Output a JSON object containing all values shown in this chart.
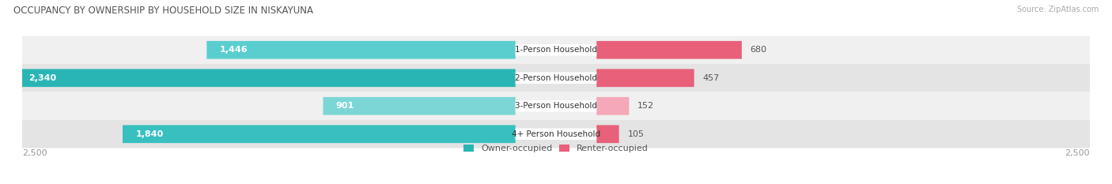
{
  "title": "OCCUPANCY BY OWNERSHIP BY HOUSEHOLD SIZE IN NISKAYUNA",
  "source": "Source: ZipAtlas.com",
  "categories": [
    "1-Person Household",
    "2-Person Household",
    "3-Person Household",
    "4+ Person Household"
  ],
  "owner_values": [
    1446,
    2340,
    901,
    1840
  ],
  "renter_values": [
    680,
    457,
    152,
    105
  ],
  "max_scale": 2500,
  "owner_color_dark": "#2ab5b5",
  "owner_color_light": "#7dd6d6",
  "renter_color_dark": "#e8607a",
  "renter_color_light": "#f4a8b8",
  "row_bg_colors": [
    "#f0f0f0",
    "#e4e4e4",
    "#f0f0f0",
    "#e4e4e4"
  ],
  "label_color": "#555555",
  "title_color": "#555555",
  "axis_label_color": "#999999",
  "legend_owner": "Owner-occupied",
  "legend_renter": "Renter-occupied",
  "figsize": [
    14.06,
    2.33
  ],
  "dpi": 100
}
